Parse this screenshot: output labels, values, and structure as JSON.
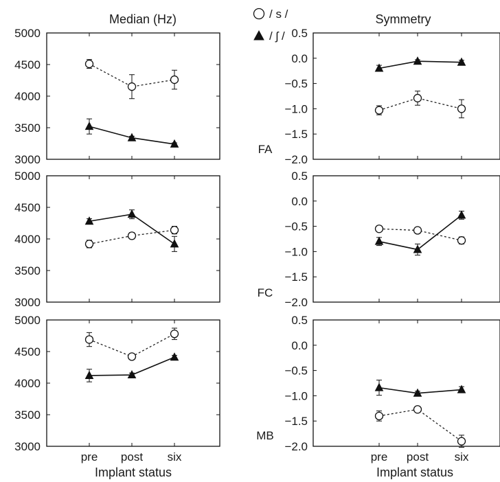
{
  "figure": {
    "column_titles": [
      "Median (Hz)",
      "Symmetry"
    ],
    "row_labels": [
      "FA",
      "FC",
      "MB"
    ],
    "x_axis_label": "Implant status",
    "legend": [
      {
        "marker": "open-circle",
        "label": "/ s /"
      },
      {
        "marker": "filled-triangle",
        "label": "/ ʃ /"
      }
    ]
  },
  "chart_data": [
    {
      "type": "line",
      "row": "FA",
      "column": "Median (Hz)",
      "categories": [
        "pre",
        "post",
        "six"
      ],
      "ylim": [
        3000,
        5000
      ],
      "yticks": [
        3000,
        3500,
        4000,
        4500,
        5000
      ],
      "series": [
        {
          "name": "/ s /",
          "values": [
            4510,
            4150,
            4260
          ],
          "errors": [
            70,
            190,
            150
          ]
        },
        {
          "name": "/ ʃ /",
          "values": [
            3520,
            3340,
            3240
          ],
          "errors": [
            120,
            25,
            20
          ]
        }
      ]
    },
    {
      "type": "line",
      "row": "FA",
      "column": "Symmetry",
      "categories": [
        "pre",
        "post",
        "six"
      ],
      "ylim": [
        -2.0,
        0.5
      ],
      "yticks": [
        0.5,
        0.0,
        -0.5,
        -1.0,
        -1.5,
        -2.0
      ],
      "series": [
        {
          "name": "/ s /",
          "values": [
            -1.03,
            -0.79,
            -1.0
          ],
          "errors": [
            0.09,
            0.14,
            0.18
          ]
        },
        {
          "name": "/ ʃ /",
          "values": [
            -0.2,
            -0.06,
            -0.08
          ],
          "errors": [
            0.06,
            0.03,
            0.04
          ]
        }
      ]
    },
    {
      "type": "line",
      "row": "FC",
      "column": "Median (Hz)",
      "categories": [
        "pre",
        "post",
        "six"
      ],
      "ylim": [
        3000,
        5000
      ],
      "yticks": [
        3000,
        3500,
        4000,
        4500,
        5000
      ],
      "series": [
        {
          "name": "/ s /",
          "values": [
            3920,
            4050,
            4140
          ],
          "errors": [
            60,
            50,
            60
          ]
        },
        {
          "name": "/ ʃ /",
          "values": [
            4280,
            4390,
            3920
          ],
          "errors": [
            40,
            70,
            120
          ]
        }
      ]
    },
    {
      "type": "line",
      "row": "FC",
      "column": "Symmetry",
      "categories": [
        "pre",
        "post",
        "six"
      ],
      "ylim": [
        -2.0,
        0.5
      ],
      "yticks": [
        0.5,
        0.0,
        -0.5,
        -1.0,
        -1.5,
        -2.0
      ],
      "series": [
        {
          "name": "/ s /",
          "values": [
            -0.55,
            -0.58,
            -0.78
          ],
          "errors": [
            0.05,
            0.06,
            0.07
          ]
        },
        {
          "name": "/ ʃ /",
          "values": [
            -0.8,
            -0.96,
            -0.28
          ],
          "errors": [
            0.08,
            0.11,
            0.08
          ]
        }
      ]
    },
    {
      "type": "line",
      "row": "MB",
      "column": "Median (Hz)",
      "categories": [
        "pre",
        "post",
        "six"
      ],
      "ylim": [
        3000,
        5000
      ],
      "yticks": [
        3000,
        3500,
        4000,
        4500,
        5000
      ],
      "series": [
        {
          "name": "/ s /",
          "values": [
            4690,
            4420,
            4780
          ],
          "errors": [
            110,
            40,
            90
          ]
        },
        {
          "name": "/ ʃ /",
          "values": [
            4120,
            4130,
            4410
          ],
          "errors": [
            100,
            30,
            30
          ]
        }
      ]
    },
    {
      "type": "line",
      "row": "MB",
      "column": "Symmetry",
      "categories": [
        "pre",
        "post",
        "six"
      ],
      "ylim": [
        -2.0,
        0.5
      ],
      "yticks": [
        0.5,
        0.0,
        -0.5,
        -1.0,
        -1.5,
        -2.0
      ],
      "series": [
        {
          "name": "/ s /",
          "values": [
            -1.4,
            -1.27,
            -1.9
          ],
          "errors": [
            0.1,
            0.04,
            0.12
          ]
        },
        {
          "name": "/ ʃ /",
          "values": [
            -0.84,
            -0.95,
            -0.88
          ],
          "errors": [
            0.15,
            0.04,
            0.06
          ]
        }
      ]
    }
  ]
}
